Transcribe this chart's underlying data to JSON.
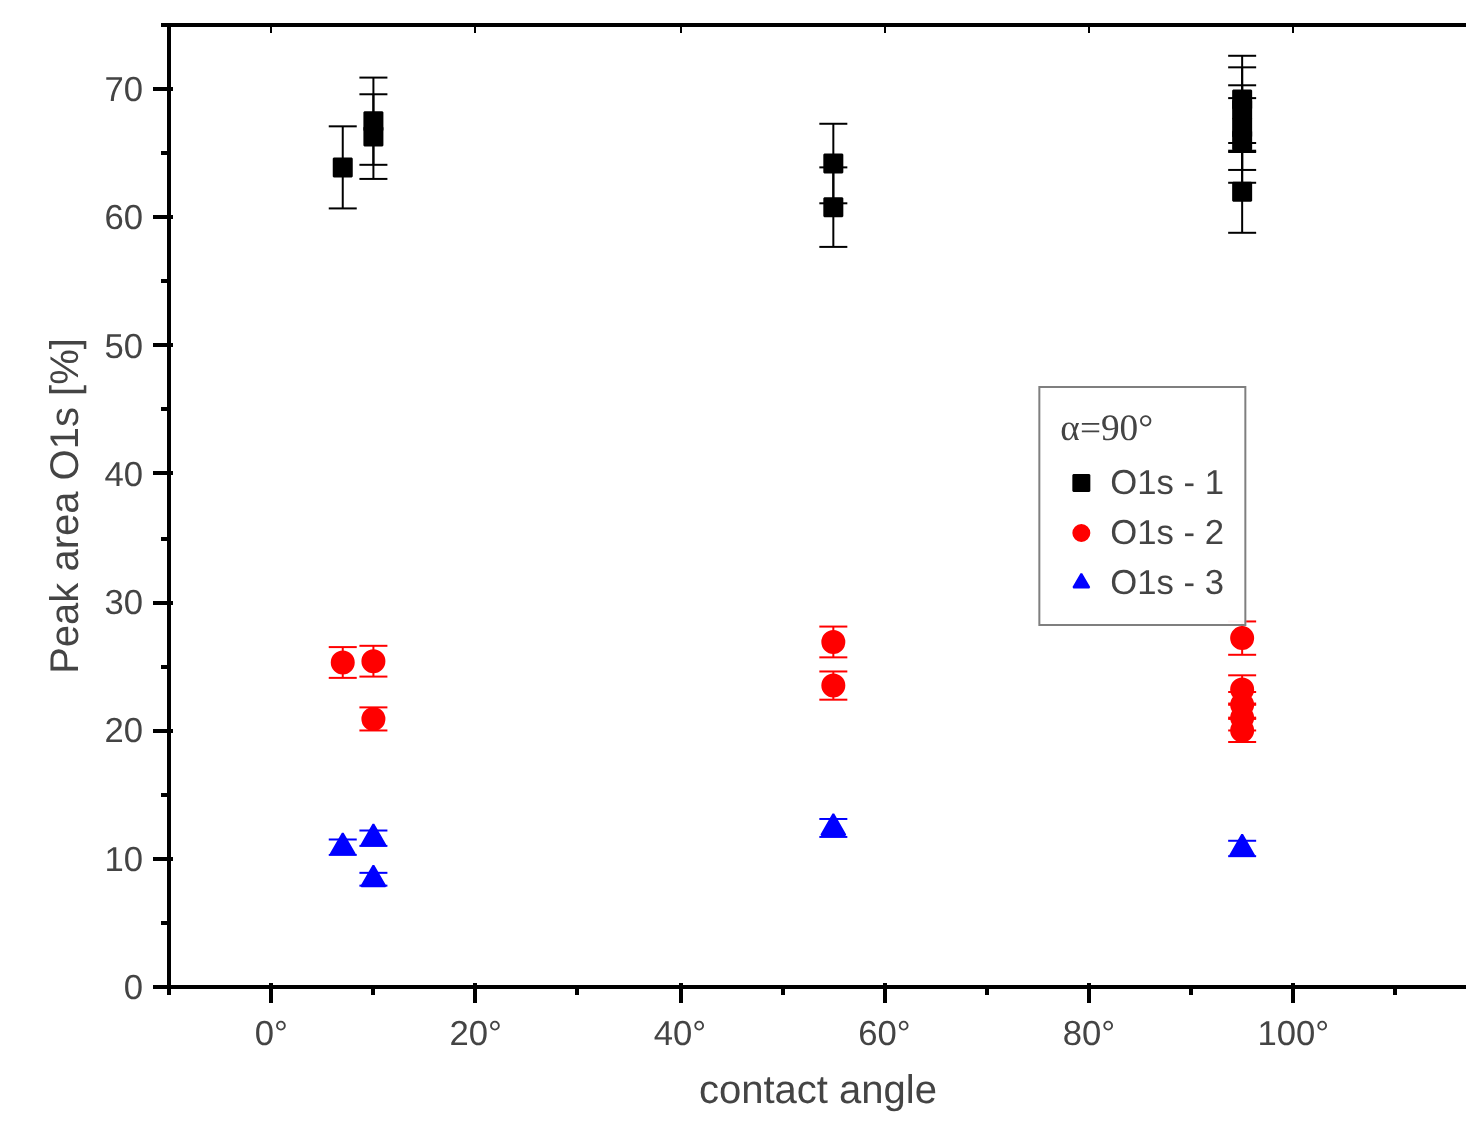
{
  "chart_data": {
    "type": "scatter",
    "xlabel": "contact angle",
    "ylabel": "Peak area O1s [%]",
    "legend_title": "α=90°",
    "legend": "right",
    "grid": false,
    "xlim": [
      -10,
      117
    ],
    "ylim": [
      0,
      75
    ],
    "xticks": [
      {
        "value": -10,
        "label": null
      },
      {
        "value": 0,
        "label": "0°"
      },
      {
        "value": 10,
        "label": null
      },
      {
        "value": 20,
        "label": "20°"
      },
      {
        "value": 30,
        "label": null
      },
      {
        "value": 40,
        "label": "40°"
      },
      {
        "value": 50,
        "label": null
      },
      {
        "value": 60,
        "label": "60°"
      },
      {
        "value": 70,
        "label": null
      },
      {
        "value": 80,
        "label": "80°"
      },
      {
        "value": 90,
        "label": null
      },
      {
        "value": 100,
        "label": "100°"
      },
      {
        "value": 110,
        "label": null
      }
    ],
    "yticks": [
      0,
      {
        "value": 5,
        "label": null
      },
      10,
      {
        "value": 15,
        "label": null
      },
      20,
      {
        "value": 25,
        "label": null
      },
      30,
      {
        "value": 35,
        "label": null
      },
      40,
      {
        "value": 45,
        "label": null
      },
      50,
      {
        "value": 55,
        "label": null
      },
      60,
      {
        "value": 65,
        "label": null
      },
      70,
      {
        "value": 75,
        "label": null
      }
    ],
    "series": [
      {
        "name": "O1s - 1",
        "color": "#000000",
        "marker": "square",
        "x": [
          7,
          10,
          10,
          55,
          55,
          95,
          95,
          95,
          95,
          95
        ],
        "values": [
          63.9,
          67.5,
          66.3,
          64.2,
          60.8,
          69.2,
          68.4,
          67.0,
          66.0,
          62.0
        ],
        "errors": [
          3.2,
          3.4,
          3.3,
          3.1,
          3.1,
          3.4,
          3.3,
          3.3,
          3.3,
          3.2
        ]
      },
      {
        "name": "O1s - 2",
        "color": "#ff0000",
        "marker": "circle",
        "x": [
          7,
          10,
          10,
          55,
          55,
          95,
          95,
          95,
          95,
          95
        ],
        "values": [
          25.3,
          25.4,
          20.9,
          26.9,
          23.5,
          27.2,
          23.2,
          22.0,
          21.0,
          20.0
        ],
        "errors": [
          1.2,
          1.2,
          0.9,
          1.2,
          1.1,
          1.3,
          1.1,
          1.0,
          1.0,
          0.9
        ]
      },
      {
        "name": "O1s - 3",
        "color": "#0000ff",
        "marker": "triangle",
        "x": [
          7,
          10,
          10,
          55,
          95
        ],
        "values": [
          10.9,
          11.6,
          8.4,
          12.4,
          10.8
        ],
        "errors": [
          0.6,
          0.6,
          0.5,
          0.7,
          0.6
        ]
      }
    ]
  }
}
